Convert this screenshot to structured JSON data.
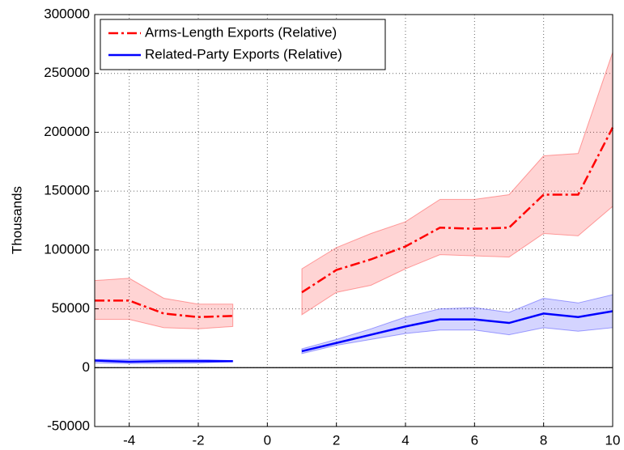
{
  "chart_data": {
    "type": "line",
    "y_label": "Thousands",
    "x": [
      -5,
      -4,
      -3,
      -2,
      -1,
      0,
      1,
      2,
      3,
      4,
      5,
      6,
      7,
      8,
      9,
      10
    ],
    "series": [
      {
        "name": "Arms-Length Exports (Relative)",
        "color": "#ff0000",
        "dash": "dashdot",
        "values": [
          57000,
          57000,
          46000,
          43000,
          44000,
          null,
          64000,
          83000,
          92000,
          103000,
          119000,
          118000,
          119000,
          147000,
          147000,
          204000
        ],
        "lower": [
          41000,
          41000,
          34000,
          33000,
          35000,
          null,
          45000,
          64000,
          70000,
          84000,
          96000,
          95000,
          94000,
          114000,
          112000,
          137000
        ],
        "upper": [
          74000,
          76000,
          59000,
          54000,
          54000,
          null,
          84000,
          102000,
          114000,
          124000,
          143000,
          143000,
          147000,
          180000,
          182000,
          268000
        ]
      },
      {
        "name": "Related-Party Exports (Relative)",
        "color": "#0000ff",
        "dash": "solid",
        "values": [
          6000,
          5000,
          5500,
          5500,
          5500,
          null,
          14000,
          21000,
          28000,
          35000,
          41000,
          41000,
          38000,
          46000,
          43000,
          48000
        ],
        "lower": [
          4000,
          3500,
          3500,
          4000,
          5000,
          null,
          12000,
          19000,
          24000,
          29000,
          32000,
          32000,
          28000,
          34000,
          31000,
          34000
        ],
        "upper": [
          7000,
          7000,
          7000,
          7000,
          6000,
          null,
          16000,
          24000,
          33000,
          43000,
          50000,
          51000,
          47000,
          59000,
          55000,
          62000
        ]
      }
    ],
    "xlim": [
      -5,
      10
    ],
    "xticks": [
      -4,
      -2,
      0,
      2,
      4,
      6,
      8,
      10
    ],
    "ylim": [
      -50000,
      300000
    ],
    "yticks": [
      -50000,
      0,
      50000,
      100000,
      150000,
      200000,
      250000,
      300000
    ],
    "hlines": [
      0
    ],
    "grid": true,
    "legend": "upper-left"
  }
}
